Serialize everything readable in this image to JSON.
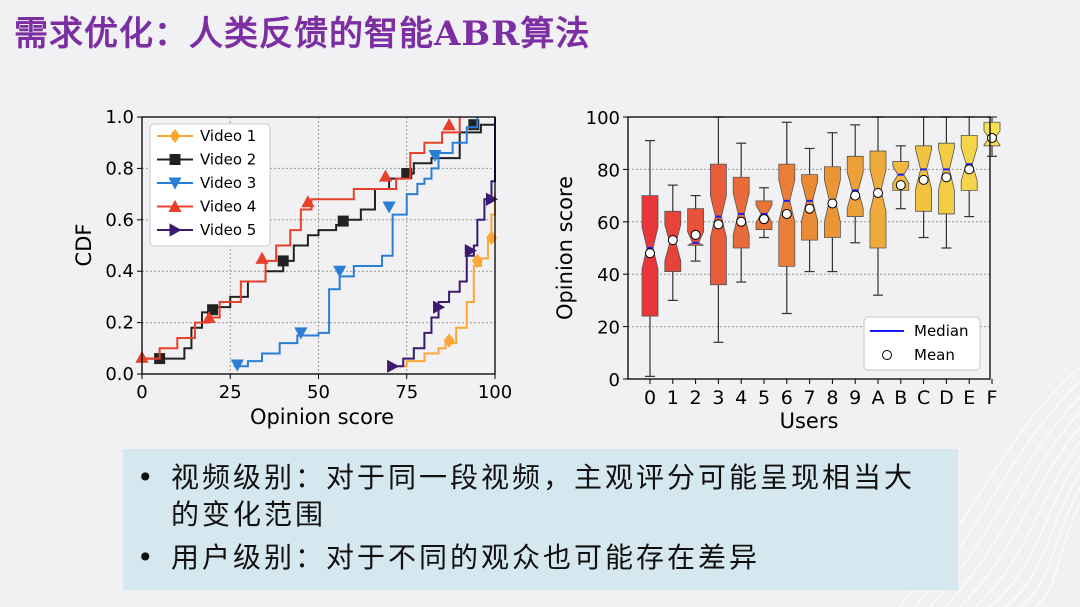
{
  "slide": {
    "title": "需求优化：人类反馈的智能ABR算法",
    "bullets": [
      "视频级别：对于同一段视频，主观评分可能呈现相当大的变化范围",
      "用户级别：对于不同的观众也可能存在差异"
    ]
  },
  "chart_data": [
    {
      "type": "line",
      "subtype": "step-cdf",
      "xlabel": "Opinion score",
      "ylabel": "CDF",
      "xlim": [
        0,
        100
      ],
      "ylim": [
        0,
        1.0
      ],
      "xticks": [
        "0",
        "25",
        "50",
        "75",
        "100"
      ],
      "yticks": [
        "0.0",
        "0.2",
        "0.4",
        "0.6",
        "0.8",
        "1.0"
      ],
      "grid": true,
      "legend": "top-left",
      "series": [
        {
          "name": "Video 1",
          "color": "#ffa534",
          "marker": "diamond",
          "points": [
            [
              72,
              0.03
            ],
            [
              75,
              0.05
            ],
            [
              80,
              0.08
            ],
            [
              84,
              0.1
            ],
            [
              86,
              0.12
            ],
            [
              89,
              0.18
            ],
            [
              92,
              0.28
            ],
            [
              94,
              0.42
            ],
            [
              96,
              0.45
            ],
            [
              98,
              0.52
            ],
            [
              99,
              0.62
            ],
            [
              100,
              0.7
            ]
          ],
          "markers": [
            [
              87,
              0.13
            ],
            [
              95,
              0.44
            ],
            [
              99,
              0.53
            ]
          ]
        },
        {
          "name": "Video 2",
          "color": "#222222",
          "marker": "square",
          "points": [
            [
              0,
              0.06
            ],
            [
              12,
              0.1
            ],
            [
              14,
              0.18
            ],
            [
              17,
              0.24
            ],
            [
              20,
              0.26
            ],
            [
              22,
              0.26
            ],
            [
              25,
              0.3
            ],
            [
              30,
              0.36
            ],
            [
              35,
              0.4
            ],
            [
              40,
              0.44
            ],
            [
              43,
              0.5
            ],
            [
              47,
              0.54
            ],
            [
              50,
              0.56
            ],
            [
              55,
              0.58
            ],
            [
              58,
              0.6
            ],
            [
              62,
              0.64
            ],
            [
              66,
              0.72
            ],
            [
              70,
              0.76
            ],
            [
              74,
              0.78
            ],
            [
              77,
              0.82
            ],
            [
              82,
              0.84
            ],
            [
              90,
              0.94
            ],
            [
              96,
              0.97
            ],
            [
              100,
              1.0
            ]
          ],
          "markers": [
            [
              5,
              0.06
            ],
            [
              20,
              0.25
            ],
            [
              40,
              0.44
            ],
            [
              57,
              0.595
            ],
            [
              75,
              0.78
            ],
            [
              94,
              0.97
            ]
          ]
        },
        {
          "name": "Video 3",
          "color": "#2a7fd4",
          "marker": "triangle-down",
          "points": [
            [
              26,
              0.03
            ],
            [
              30,
              0.05
            ],
            [
              34,
              0.08
            ],
            [
              39,
              0.12
            ],
            [
              44,
              0.15
            ],
            [
              50,
              0.16
            ],
            [
              53,
              0.33
            ],
            [
              56,
              0.38
            ],
            [
              60,
              0.42
            ],
            [
              68,
              0.46
            ],
            [
              71,
              0.62
            ],
            [
              75,
              0.7
            ],
            [
              78,
              0.74
            ],
            [
              80,
              0.76
            ],
            [
              82,
              0.8
            ],
            [
              84,
              0.86
            ],
            [
              88,
              0.9
            ],
            [
              92,
              0.96
            ],
            [
              95,
              1.0
            ]
          ],
          "markers": [
            [
              27,
              0.035
            ],
            [
              45,
              0.16
            ],
            [
              56,
              0.4
            ],
            [
              70,
              0.65
            ],
            [
              83,
              0.85
            ]
          ]
        },
        {
          "name": "Video 4",
          "color": "#e8402a",
          "marker": "triangle-up",
          "points": [
            [
              0,
              0.06
            ],
            [
              5,
              0.1
            ],
            [
              10,
              0.14
            ],
            [
              15,
              0.2
            ],
            [
              19,
              0.22
            ],
            [
              22,
              0.28
            ],
            [
              28,
              0.36
            ],
            [
              35,
              0.44
            ],
            [
              38,
              0.5
            ],
            [
              42,
              0.56
            ],
            [
              45,
              0.64
            ],
            [
              48,
              0.68
            ],
            [
              55,
              0.68
            ],
            [
              60,
              0.72
            ],
            [
              68,
              0.72
            ],
            [
              72,
              0.76
            ],
            [
              76,
              0.86
            ],
            [
              80,
              0.9
            ],
            [
              85,
              0.94
            ],
            [
              90,
              1.0
            ]
          ],
          "markers": [
            [
              0,
              0.065
            ],
            [
              19,
              0.22
            ],
            [
              34,
              0.45
            ],
            [
              47,
              0.67
            ],
            [
              69,
              0.77
            ],
            [
              87,
              0.97
            ]
          ]
        },
        {
          "name": "Video 5",
          "color": "#3a1a6e",
          "marker": "triangle-right",
          "points": [
            [
              71,
              0.03
            ],
            [
              74,
              0.06
            ],
            [
              77,
              0.1
            ],
            [
              80,
              0.16
            ],
            [
              82,
              0.22
            ],
            [
              84,
              0.28
            ],
            [
              87,
              0.32
            ],
            [
              90,
              0.36
            ],
            [
              92,
              0.46
            ],
            [
              94,
              0.5
            ],
            [
              95,
              0.6
            ],
            [
              97,
              0.68
            ],
            [
              99,
              0.75
            ],
            [
              100,
              0.85
            ],
            [
              100,
              1.0
            ]
          ],
          "markers": [
            [
              71,
              0.03
            ],
            [
              84,
              0.26
            ],
            [
              93,
              0.48
            ],
            [
              99,
              0.68
            ]
          ]
        }
      ]
    },
    {
      "type": "box",
      "xlabel": "Users",
      "ylabel": "Opinion score",
      "ylim": [
        0,
        100
      ],
      "yticks": [
        "0",
        "20",
        "40",
        "60",
        "80",
        "100"
      ],
      "categories": [
        "0",
        "1",
        "2",
        "3",
        "4",
        "5",
        "6",
        "7",
        "8",
        "9",
        "A",
        "B",
        "C",
        "D",
        "E",
        "F"
      ],
      "grid": true,
      "notched": true,
      "legend": "bottom-right",
      "legend_entries": [
        "Median",
        "Mean"
      ],
      "boxes": [
        {
          "min": 1,
          "q1": 24,
          "median": 50,
          "q3": 70,
          "max": 91,
          "mean": 48,
          "color": "#e8363a"
        },
        {
          "min": 30,
          "q1": 41,
          "median": 52,
          "q3": 64,
          "max": 74,
          "mean": 53,
          "color": "#e6443a"
        },
        {
          "min": 45,
          "q1": 51,
          "median": 52,
          "q3": 65,
          "max": 70,
          "mean": 55,
          "color": "#e8513a"
        },
        {
          "min": 14,
          "q1": 36,
          "median": 62,
          "q3": 82,
          "max": 100,
          "mean": 59,
          "color": "#e85c3a"
        },
        {
          "min": 37,
          "q1": 50,
          "median": 63,
          "q3": 77,
          "max": 90,
          "mean": 60,
          "color": "#e96a3a"
        },
        {
          "min": 54,
          "q1": 57,
          "median": 63,
          "q3": 68,
          "max": 73,
          "mean": 61,
          "color": "#ea7438"
        },
        {
          "min": 25,
          "q1": 43,
          "median": 68,
          "q3": 82,
          "max": 98,
          "mean": 63,
          "color": "#ea7e36"
        },
        {
          "min": 41,
          "q1": 53,
          "median": 68,
          "q3": 78,
          "max": 88,
          "mean": 65,
          "color": "#eb8a36"
        },
        {
          "min": 41,
          "q1": 54,
          "median": 68,
          "q3": 81,
          "max": 94,
          "mean": 67,
          "color": "#ec9537"
        },
        {
          "min": 52,
          "q1": 62,
          "median": 72,
          "q3": 85,
          "max": 97,
          "mean": 70,
          "color": "#eda038"
        },
        {
          "min": 32,
          "q1": 50,
          "median": 72,
          "q3": 87,
          "max": 100,
          "mean": 71,
          "color": "#eeaa3a"
        },
        {
          "min": 65,
          "q1": 72,
          "median": 78,
          "q3": 83,
          "max": 89,
          "mean": 74,
          "color": "#f0b83c"
        },
        {
          "min": 54,
          "q1": 64,
          "median": 80,
          "q3": 89,
          "max": 100,
          "mean": 76,
          "color": "#f2c340"
        },
        {
          "min": 50,
          "q1": 63,
          "median": 80,
          "q3": 90,
          "max": 100,
          "mean": 77,
          "color": "#f3cc44"
        },
        {
          "min": 62,
          "q1": 72,
          "median": 82,
          "q3": 93,
          "max": 100,
          "mean": 80,
          "color": "#f5d64a"
        },
        {
          "min": 85,
          "q1": 89,
          "median": 92,
          "q3": 98,
          "max": 100,
          "mean": 92,
          "color": "#f7e052"
        }
      ]
    }
  ]
}
